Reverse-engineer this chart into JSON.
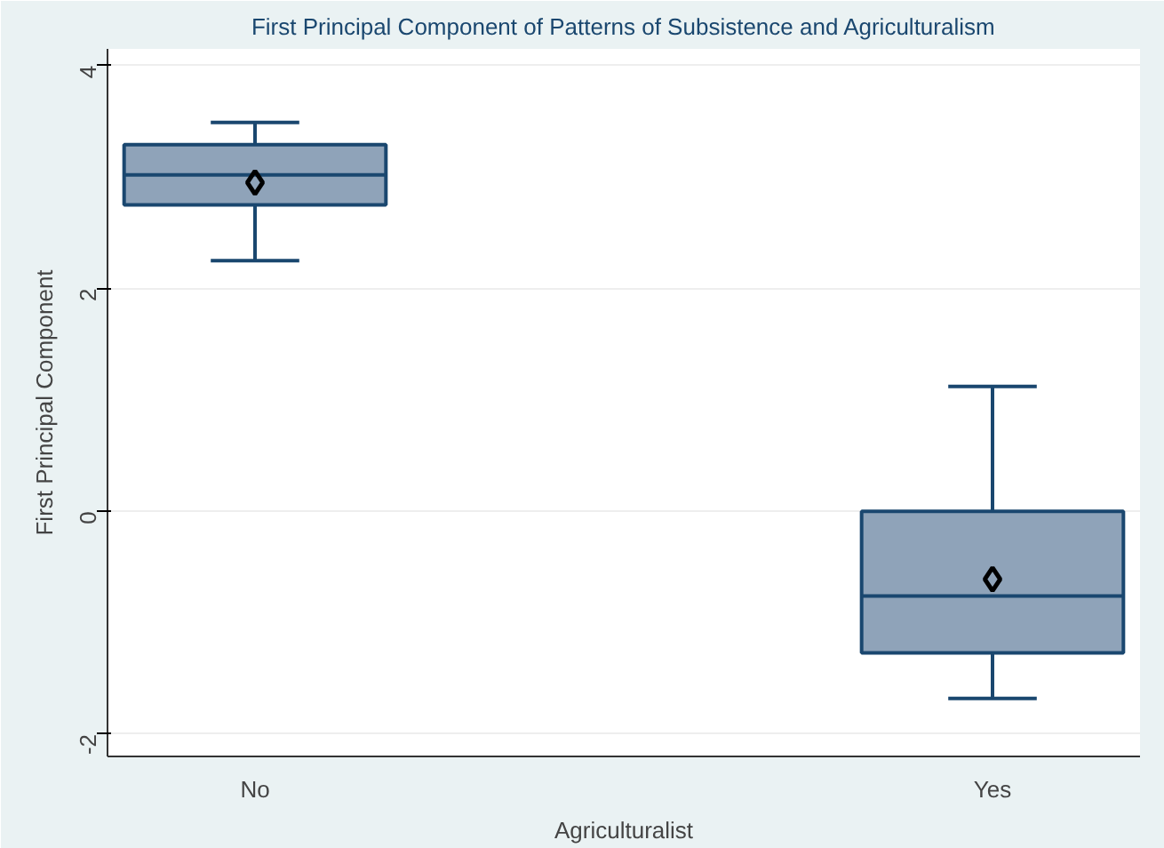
{
  "chart_data": {
    "type": "box",
    "title": "First Principal Component of Patterns of Subsistence and Agriculturalism",
    "xlabel": "Agriculturalist",
    "ylabel": "First Principal Component",
    "categories": [
      "No",
      "Yes"
    ],
    "boxes": [
      {
        "low": 2.25,
        "q1": 2.75,
        "median": 3.02,
        "q3": 3.29,
        "high": 3.49,
        "mean": 2.95
      },
      {
        "low": -1.68,
        "q1": -1.27,
        "median": -0.76,
        "q3": 0.0,
        "high": 1.12,
        "mean": -0.61
      }
    ],
    "color": "#8fa3b9",
    "ylim": [
      -2.2,
      4.15
    ],
    "yticks": [
      -2,
      0,
      2,
      4
    ],
    "grid": "y"
  }
}
